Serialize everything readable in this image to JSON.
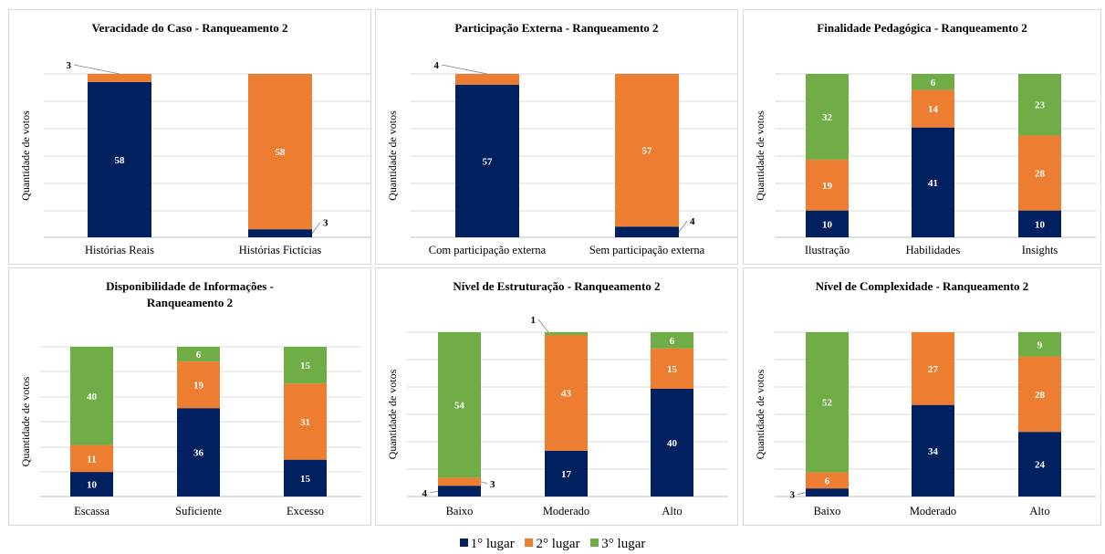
{
  "colors": {
    "1st": "#002060",
    "2nd": "#ED7D31",
    "3rd": "#70AD47"
  },
  "legend": [
    {
      "label": "1° lugar",
      "key": "1st"
    },
    {
      "label": "2° lugar",
      "key": "2nd"
    },
    {
      "label": "3° lugar",
      "key": "3rd"
    }
  ],
  "chart_data": [
    {
      "type": "bar",
      "stacked": true,
      "title": "Veracidade do Caso - Ranqueamento 2",
      "ylabel": "Quantidade de votos",
      "ylim": [
        0,
        61
      ],
      "categories": [
        "Histórias Reais",
        "Histórias Fictícias"
      ],
      "series": [
        {
          "name": "1° lugar",
          "key": "1st",
          "values": [
            58,
            3
          ]
        },
        {
          "name": "2° lugar",
          "key": "2nd",
          "values": [
            3,
            58
          ]
        }
      ]
    },
    {
      "type": "bar",
      "stacked": true,
      "title": "Participação Externa - Ranqueamento 2",
      "ylabel": "Quantidade de votos",
      "ylim": [
        0,
        61
      ],
      "categories": [
        "Com participação externa",
        "Sem participação externa"
      ],
      "series": [
        {
          "name": "1° lugar",
          "key": "1st",
          "values": [
            57,
            4
          ]
        },
        {
          "name": "2° lugar",
          "key": "2nd",
          "values": [
            4,
            57
          ]
        }
      ]
    },
    {
      "type": "bar",
      "stacked": true,
      "title": "Finalidade Pedagógica - Ranqueamento 2",
      "ylabel": "Quantidade de votos",
      "ylim": [
        0,
        61
      ],
      "categories": [
        "Ilustração",
        "Habilidades",
        "Insights"
      ],
      "series": [
        {
          "name": "1° lugar",
          "key": "1st",
          "values": [
            10,
            41,
            10
          ]
        },
        {
          "name": "2° lugar",
          "key": "2nd",
          "values": [
            19,
            14,
            28
          ]
        },
        {
          "name": "3° lugar",
          "key": "3rd",
          "values": [
            32,
            6,
            23
          ]
        }
      ]
    },
    {
      "type": "bar",
      "stacked": true,
      "title": "Disponibilidade de Informações - Ranqueamento 2",
      "title_lines": [
        "Disponibilidade de Informações -",
        "Ranqueamento 2"
      ],
      "ylabel": "Quantidade de votos",
      "ylim": [
        0,
        61
      ],
      "categories": [
        "Escassa",
        "Suficiente",
        "Excesso"
      ],
      "series": [
        {
          "name": "1° lugar",
          "key": "1st",
          "values": [
            10,
            36,
            15
          ]
        },
        {
          "name": "2° lugar",
          "key": "2nd",
          "values": [
            11,
            19,
            31
          ]
        },
        {
          "name": "3° lugar",
          "key": "3rd",
          "values": [
            40,
            6,
            15
          ]
        }
      ]
    },
    {
      "type": "bar",
      "stacked": true,
      "title": "Nível de Estruturação - Ranqueamento 2",
      "ylabel": "Quantidade de votos",
      "ylim": [
        0,
        61
      ],
      "categories": [
        "Baixo",
        "Moderado",
        "Alto"
      ],
      "series": [
        {
          "name": "1° lugar",
          "key": "1st",
          "values": [
            4,
            17,
            40
          ]
        },
        {
          "name": "2° lugar",
          "key": "2nd",
          "values": [
            3,
            43,
            15
          ]
        },
        {
          "name": "3° lugar",
          "key": "3rd",
          "values": [
            54,
            1,
            6
          ]
        }
      ]
    },
    {
      "type": "bar",
      "stacked": true,
      "title": "Nível de Complexidade - Ranqueamento 2",
      "ylabel": "Quantidade de votos",
      "ylim": [
        0,
        61
      ],
      "categories": [
        "Baixo",
        "Moderado",
        "Alto"
      ],
      "series": [
        {
          "name": "1° lugar",
          "key": "1st",
          "values": [
            3,
            34,
            24
          ]
        },
        {
          "name": "2° lugar",
          "key": "2nd",
          "values": [
            6,
            27,
            28
          ]
        },
        {
          "name": "3° lugar",
          "key": "3rd",
          "values": [
            52,
            0,
            9
          ]
        }
      ]
    }
  ]
}
